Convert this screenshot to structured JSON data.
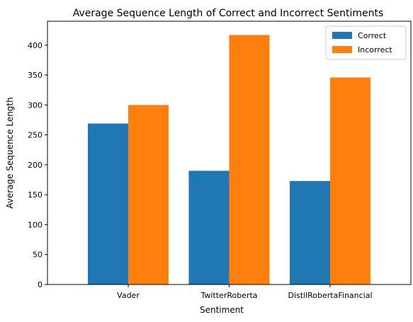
{
  "chart_data": {
    "type": "bar",
    "title": "Average Sequence Length of Correct and Incorrect Sentiments",
    "xlabel": "Sentiment",
    "ylabel": "Average Sequence Length",
    "categories": [
      "Vader",
      "TwitterRoberta",
      "DistilRobertaFinancial"
    ],
    "series": [
      {
        "name": "Correct",
        "values": [
          269,
          190,
          173
        ],
        "color": "#1f77b4"
      },
      {
        "name": "Incorrect",
        "values": [
          300,
          417,
          346
        ],
        "color": "#ff7f0e"
      }
    ],
    "ylim": [
      0,
      440
    ],
    "yticks": [
      0,
      50,
      100,
      150,
      200,
      250,
      300,
      350,
      400
    ],
    "grid": false,
    "legend_position": "top-right"
  }
}
